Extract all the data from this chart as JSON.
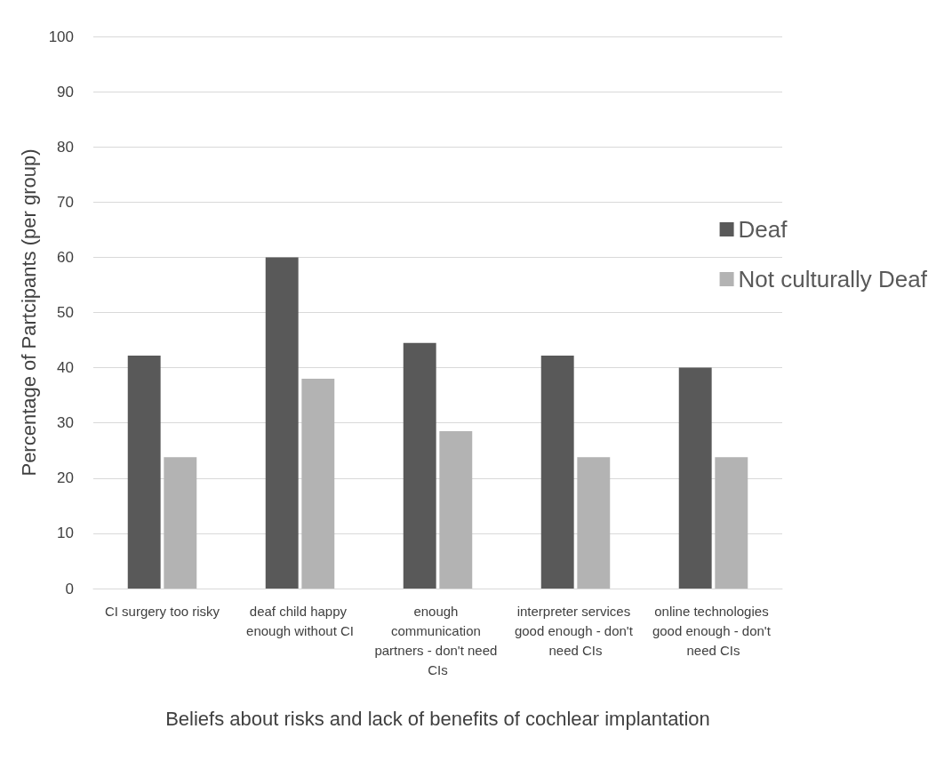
{
  "chart_data": {
    "type": "bar",
    "xlabel": "Beliefs about risks and lack of benefits of cochlear implantation",
    "ylabel": "Percentage of Partcipants (per group)",
    "categories": [
      "CI surgery too risky",
      "deaf child happy enough without CI",
      "enough communication partners - don't need CIs",
      "interpreter services good enough - don't need CIs",
      "online technologies good enough - don't need CIs"
    ],
    "series": [
      {
        "name": "Deaf",
        "color": "#595959",
        "values": [
          42.2,
          60,
          44.5,
          42.2,
          40
        ]
      },
      {
        "name": "Not culturally Deaf",
        "color": "#b3b3b3",
        "values": [
          23.8,
          38,
          28.5,
          23.8,
          23.8
        ]
      }
    ],
    "ylim": [
      0,
      100
    ],
    "yticks": [
      0,
      10,
      20,
      30,
      40,
      50,
      60,
      70,
      80,
      90,
      100
    ],
    "grid": "y",
    "legend": "right"
  }
}
